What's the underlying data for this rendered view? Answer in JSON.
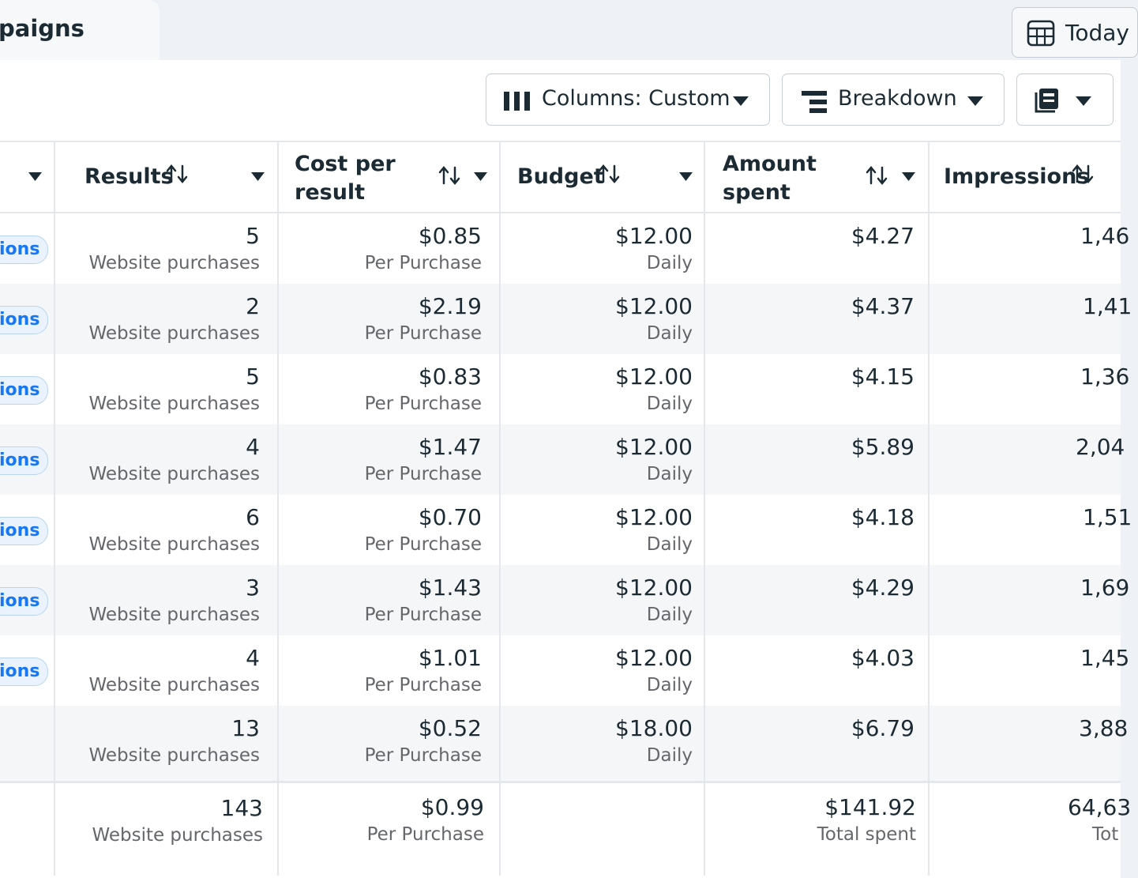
{
  "tab": {
    "label": "paigns"
  },
  "date_button": {
    "label": "Today"
  },
  "toolbar": {
    "columns_label": "Columns: Custom",
    "breakdown_label": "Breakdown"
  },
  "headers": {
    "results": "Results",
    "cost_line1": "Cost per",
    "cost_line2": "result",
    "budget": "Budget",
    "amount_line1": "Amount",
    "amount_line2": "spent",
    "impressions": "Impressions"
  },
  "rows": [
    {
      "status": "ions",
      "results": "5",
      "results_sub": "Website purchases",
      "cost": "$0.85",
      "cost_sub": "Per Purchase",
      "budget": "$12.00",
      "budget_sub": "Daily",
      "spent": "$4.27",
      "impressions": "1,46"
    },
    {
      "status": "ions",
      "results": "2",
      "results_sub": "Website purchases",
      "cost": "$2.19",
      "cost_sub": "Per Purchase",
      "budget": "$12.00",
      "budget_sub": "Daily",
      "spent": "$4.37",
      "impressions": "1,41"
    },
    {
      "status": "ions",
      "results": "5",
      "results_sub": "Website purchases",
      "cost": "$0.83",
      "cost_sub": "Per Purchase",
      "budget": "$12.00",
      "budget_sub": "Daily",
      "spent": "$4.15",
      "impressions": "1,36"
    },
    {
      "status": "ions",
      "results": "4",
      "results_sub": "Website purchases",
      "cost": "$1.47",
      "cost_sub": "Per Purchase",
      "budget": "$12.00",
      "budget_sub": "Daily",
      "spent": "$5.89",
      "impressions": "2,04"
    },
    {
      "status": "ions",
      "results": "6",
      "results_sub": "Website purchases",
      "cost": "$0.70",
      "cost_sub": "Per Purchase",
      "budget": "$12.00",
      "budget_sub": "Daily",
      "spent": "$4.18",
      "impressions": "1,51"
    },
    {
      "status": "ions",
      "results": "3",
      "results_sub": "Website purchases",
      "cost": "$1.43",
      "cost_sub": "Per Purchase",
      "budget": "$12.00",
      "budget_sub": "Daily",
      "spent": "$4.29",
      "impressions": "1,69"
    },
    {
      "status": "ions",
      "results": "4",
      "results_sub": "Website purchases",
      "cost": "$1.01",
      "cost_sub": "Per Purchase",
      "budget": "$12.00",
      "budget_sub": "Daily",
      "spent": "$4.03",
      "impressions": "1,45"
    },
    {
      "status": "",
      "results": "13",
      "results_sub": "Website purchases",
      "cost": "$0.52",
      "cost_sub": "Per Purchase",
      "budget": "$18.00",
      "budget_sub": "Daily",
      "spent": "$6.79",
      "impressions": "3,88"
    }
  ],
  "totals": {
    "results": "143",
    "results_sub": "Website purchases",
    "cost": "$0.99",
    "cost_sub": "Per Purchase",
    "spent": "$141.92",
    "spent_sub": "Total spent",
    "impressions": "64,63",
    "impressions_sub": "Tot"
  }
}
